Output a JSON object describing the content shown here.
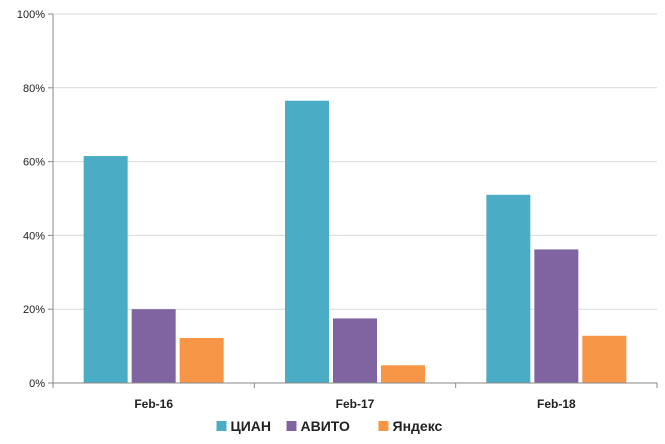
{
  "chart_data": {
    "type": "bar",
    "title": "",
    "xlabel": "",
    "ylabel": "",
    "categories": [
      "Feb-16",
      "Feb-17",
      "Feb-18"
    ],
    "series": [
      {
        "name": "ЦИАН",
        "color": "#4bacc6",
        "values": [
          61.5,
          76.5,
          51
        ]
      },
      {
        "name": "АВИТО",
        "color": "#8064a2",
        "values": [
          20,
          17.5,
          36.2
        ]
      },
      {
        "name": "Яндекс",
        "color": "#f79646",
        "values": [
          12.2,
          4.8,
          12.8
        ]
      }
    ],
    "ylim": [
      0,
      100
    ],
    "yticks": [
      0,
      20,
      40,
      60,
      80,
      100
    ],
    "ytick_labels": [
      "0%",
      "20%",
      "40%",
      "60%",
      "80%",
      "100%"
    ],
    "grid": true,
    "legend_position": "bottom"
  }
}
